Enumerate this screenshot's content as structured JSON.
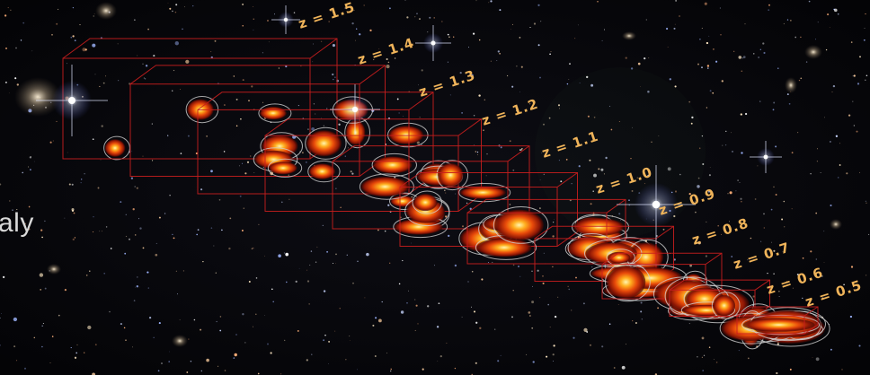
{
  "scene": {
    "edge_text": "aly",
    "box_color": "#c81e1e",
    "label_color": "#f0b45a",
    "slice_labels": [
      "z = 1.5",
      "z = 1.4",
      "z = 1.3",
      "z = 1.2",
      "z = 1.1",
      "z = 1.0",
      "z = 0.9",
      "z = 0.8",
      "z = 0.7",
      "z = 0.6",
      "z = 0.5"
    ]
  }
}
